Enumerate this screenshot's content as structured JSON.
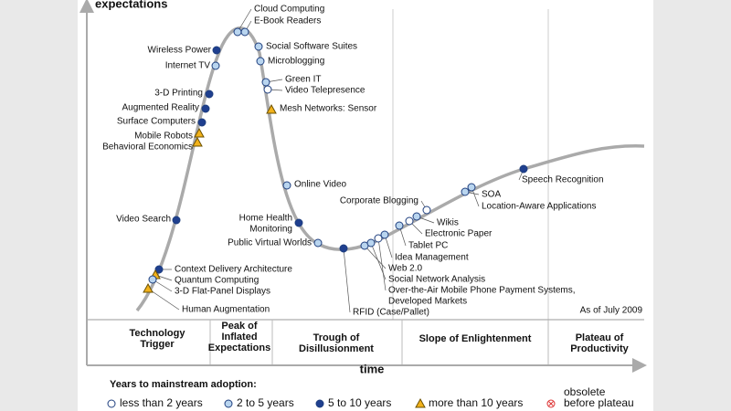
{
  "axis": {
    "y_label": "expectations",
    "x_label": "time"
  },
  "as_of": "As of July 2009",
  "phases": [
    [
      "Technology",
      "Trigger"
    ],
    [
      "Peak of",
      "Inflated",
      "Expectations"
    ],
    [
      "Trough of",
      "Disillusionment"
    ],
    [
      "Slope of Enlightenment"
    ],
    [
      "Plateau of",
      "Productivity"
    ]
  ],
  "technologies": [
    {
      "label": "Cloud Computing",
      "adoption": "2 to 5 years"
    },
    {
      "label": "E-Book Readers",
      "adoption": "2 to 5 years"
    },
    {
      "label": "Wireless Power",
      "adoption": "5 to 10 years"
    },
    {
      "label": "Internet TV",
      "adoption": "2 to 5 years"
    },
    {
      "label": "Social Software Suites",
      "adoption": "2 to 5 years"
    },
    {
      "label": "Microblogging",
      "adoption": "2 to 5 years"
    },
    {
      "label": "Green IT",
      "adoption": "2 to 5 years"
    },
    {
      "label": "Video Telepresence",
      "adoption": "less than 2 years"
    },
    {
      "label": "Mesh Networks: Sensor",
      "adoption": "more than 10 years"
    },
    {
      "label": "3-D Printing",
      "adoption": "5 to 10 years"
    },
    {
      "label": "Augmented Reality",
      "adoption": "5 to 10 years"
    },
    {
      "label": "Surface Computers",
      "adoption": "5 to 10 years"
    },
    {
      "label": "Mobile Robots",
      "adoption": "more than 10 years"
    },
    {
      "label": "Behavioral Economics",
      "adoption": "more than 10 years"
    },
    {
      "label": "Online Video",
      "adoption": "2 to 5 years"
    },
    {
      "label": "Video Search",
      "adoption": "5 to 10 years"
    },
    {
      "label": [
        "Home Health",
        "Monitoring"
      ],
      "adoption": "5 to 10 years"
    },
    {
      "label": "Public Virtual Worlds",
      "adoption": "2 to 5 years"
    },
    {
      "label": "RFID (Case/Pallet)",
      "adoption": "5 to 10 years"
    },
    {
      "label": "Web 2.0",
      "adoption": "2 to 5 years"
    },
    {
      "label": "Social Network Analysis",
      "adoption": "2 to 5 years"
    },
    {
      "label": [
        "Over-the-Air Mobile Phone Payment Systems,",
        "Developed Markets"
      ],
      "adoption": "less than 2 years"
    },
    {
      "label": "Idea Management",
      "adoption": "2 to 5 years"
    },
    {
      "label": "Tablet PC",
      "adoption": "2 to 5 years"
    },
    {
      "label": "Electronic Paper",
      "adoption": "less than 2 years"
    },
    {
      "label": "Wikis",
      "adoption": "2 to 5 years"
    },
    {
      "label": "Corporate Blogging",
      "adoption": "less than 2 years"
    },
    {
      "label": "SOA",
      "adoption": "2 to 5 years"
    },
    {
      "label": "Location-Aware Applications",
      "adoption": "2 to 5 years"
    },
    {
      "label": "Speech Recognition",
      "adoption": "5 to 10 years"
    },
    {
      "label": "Context Delivery Architecture",
      "adoption": "5 to 10 years"
    },
    {
      "label": "Quantum Computing",
      "adoption": "more than 10 years"
    },
    {
      "label": "3-D Flat-Panel Displays",
      "adoption": "2 to 5 years"
    },
    {
      "label": "Human Augmentation",
      "adoption": "more than 10 years"
    }
  ],
  "legend": {
    "title": "Years to mainstream adoption:",
    "items": [
      [
        "less than 2 years"
      ],
      [
        "2 to 5 years"
      ],
      [
        "5 to 10 years"
      ],
      [
        "more than 10 years"
      ],
      [
        "obsolete",
        "before plateau"
      ]
    ]
  }
}
